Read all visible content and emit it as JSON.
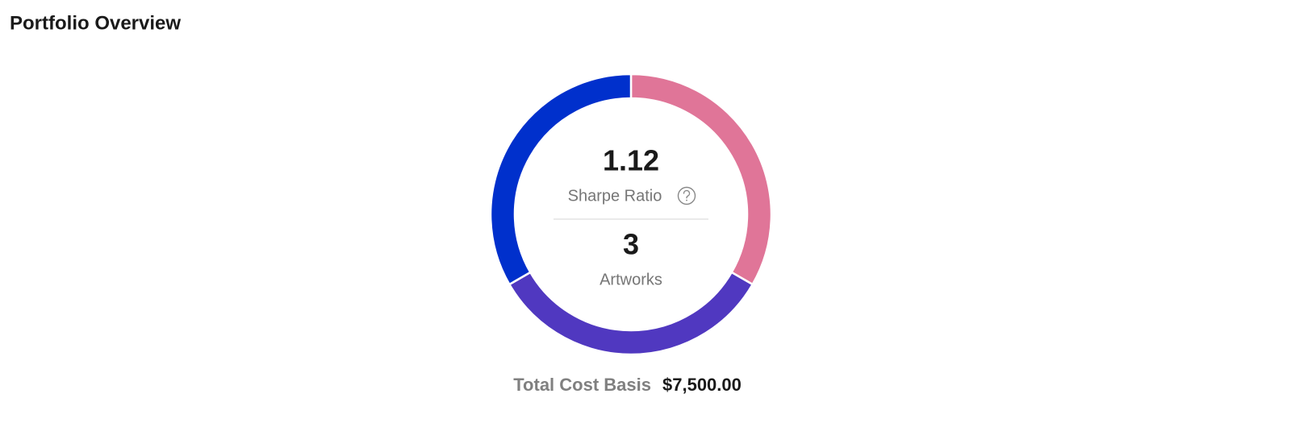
{
  "header": {
    "title": "Portfolio Overview"
  },
  "chart_data": {
    "type": "donut",
    "values": [
      2500,
      2500,
      2500
    ],
    "colors": [
      "#e07598",
      "#5038c0",
      "#0030cc"
    ]
  },
  "stats": [
    {
      "value": "1.12",
      "label": "Sharpe Ratio"
    },
    {
      "value": "3",
      "label": "Artworks"
    }
  ],
  "total": {
    "label": "Total Cost Basis",
    "value": "$7,500.00"
  }
}
